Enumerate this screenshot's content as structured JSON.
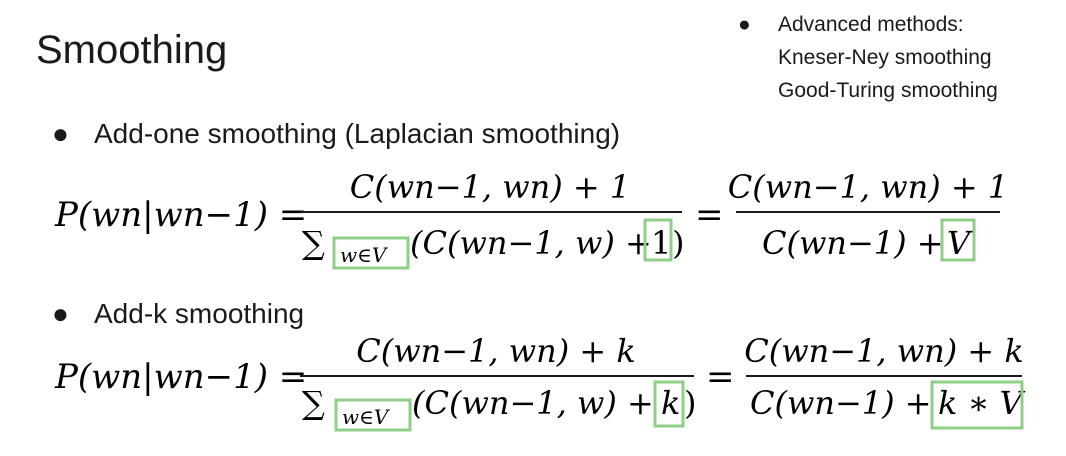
{
  "title": "Smoothing",
  "advanced": {
    "bullet": "●",
    "lines": [
      "Advanced methods:",
      "Kneser-Ney smoothing",
      "Good-Turing smoothing"
    ]
  },
  "sections": [
    {
      "bullet": "●",
      "label": "Add-one smoothing (Laplacian smoothing)",
      "lhs": "P(wn|wn−1) =",
      "frac1_num": "C(wn−1, wn) + 1",
      "frac1_den_sum": "∑",
      "frac1_den_sub": "w∈V",
      "frac1_den_body": "(C(wn−1, w) + ",
      "frac1_den_hl": "1",
      "frac1_den_close": ")",
      "eq": "=",
      "frac2_num": "C(wn−1, wn) + 1",
      "frac2_den": "C(wn−1) + ",
      "frac2_den_hl": "V"
    },
    {
      "bullet": "●",
      "label": "Add-k smoothing",
      "lhs": "P(wn|wn−1) =",
      "frac1_num": "C(wn−1, wn) + k",
      "frac1_den_sum": "∑",
      "frac1_den_sub": "w∈V",
      "frac1_den_body": "(C(wn−1, w) + ",
      "frac1_den_hl": "k",
      "frac1_den_close": ")",
      "eq": "=",
      "frac2_num": "C(wn−1, wn) + k",
      "frac2_den": "C(wn−1) + ",
      "frac2_den_hl": "k ∗ V"
    }
  ],
  "colors": {
    "highlight": "#8fce87",
    "text": "#1a1a1a"
  }
}
